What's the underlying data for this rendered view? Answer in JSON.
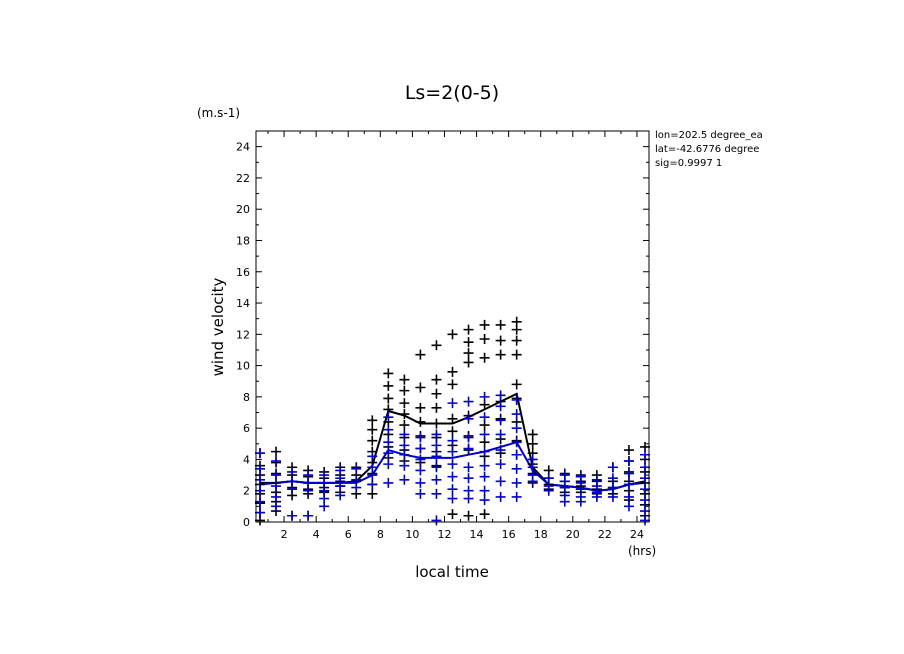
{
  "chart_data": {
    "type": "scatter",
    "title": "Ls=2(0-5)",
    "xlabel": "local time",
    "ylabel": "wind velocity",
    "y_unit": "(m.s-1)",
    "x_unit": "(hrs)",
    "xlim": [
      0.25,
      24.75
    ],
    "ylim": [
      0,
      25
    ],
    "x_ticks": [
      2,
      4,
      6,
      8,
      10,
      12,
      14,
      16,
      18,
      20,
      22,
      24
    ],
    "y_ticks": [
      0,
      2,
      4,
      6,
      8,
      10,
      12,
      14,
      16,
      18,
      20,
      22,
      24
    ],
    "info": [
      "lon=202.5 degree_ea",
      "lat=-42.6776 degree",
      "sig=0.9997 1"
    ],
    "grid": false,
    "lines": [
      {
        "color": "#000000",
        "x": [
          0.5,
          1.5,
          2.5,
          3.5,
          4.5,
          5.5,
          6.5,
          7.5,
          8.5,
          9.5,
          10.5,
          11.5,
          12.5,
          13.5,
          14.5,
          15.5,
          16.5,
          17.5,
          18.5,
          19.5,
          20.5,
          21.5,
          22.5,
          23.5,
          24.5
        ],
        "y": [
          2.5,
          2.5,
          2.6,
          2.5,
          2.5,
          2.5,
          2.6,
          3.6,
          7.1,
          6.8,
          6.3,
          6.3,
          6.3,
          6.7,
          7.2,
          7.7,
          8.2,
          3.5,
          2.4,
          2.3,
          2.2,
          2.0,
          2.1,
          2.4,
          2.6
        ]
      },
      {
        "color": "#0000cc",
        "x": [
          0.5,
          1.5,
          2.5,
          3.5,
          4.5,
          5.5,
          6.5,
          7.5,
          8.5,
          9.5,
          10.5,
          11.5,
          12.5,
          13.5,
          14.5,
          15.5,
          16.5,
          17.5,
          18.5,
          19.5,
          20.5,
          21.5,
          22.5,
          23.5,
          24.5
        ],
        "y": [
          2.4,
          2.5,
          2.6,
          2.5,
          2.5,
          2.5,
          2.5,
          3.0,
          4.6,
          4.3,
          4.1,
          4.1,
          4.1,
          4.3,
          4.5,
          4.8,
          5.1,
          3.3,
          2.4,
          2.3,
          2.2,
          2.0,
          2.1,
          2.4,
          2.5
        ]
      }
    ],
    "series": [
      {
        "color": "#000000",
        "points": [
          [
            0.5,
            4.4
          ],
          [
            0.5,
            3.6
          ],
          [
            0.5,
            3.0
          ],
          [
            0.5,
            2.4
          ],
          [
            0.5,
            1.8
          ],
          [
            0.5,
            1.2
          ],
          [
            0.5,
            0.6
          ],
          [
            0.5,
            0.1
          ],
          [
            1.5,
            4.5
          ],
          [
            1.5,
            3.8
          ],
          [
            1.5,
            3.1
          ],
          [
            1.5,
            2.5
          ],
          [
            1.5,
            1.9
          ],
          [
            1.5,
            1.3
          ],
          [
            1.5,
            0.7
          ],
          [
            2.5,
            3.5
          ],
          [
            2.5,
            3.0
          ],
          [
            2.5,
            2.6
          ],
          [
            2.5,
            2.2
          ],
          [
            2.5,
            1.7
          ],
          [
            2.5,
            0.4
          ],
          [
            3.5,
            3.3
          ],
          [
            3.5,
            2.9
          ],
          [
            3.5,
            2.5
          ],
          [
            3.5,
            2.1
          ],
          [
            3.5,
            1.8
          ],
          [
            3.5,
            0.4
          ],
          [
            4.5,
            3.2
          ],
          [
            4.5,
            2.8
          ],
          [
            4.5,
            2.5
          ],
          [
            4.5,
            2.2
          ],
          [
            4.5,
            1.9
          ],
          [
            5.5,
            3.5
          ],
          [
            5.5,
            3.0
          ],
          [
            5.5,
            2.6
          ],
          [
            5.5,
            2.3
          ],
          [
            5.5,
            1.9
          ],
          [
            6.5,
            3.5
          ],
          [
            6.5,
            3.0
          ],
          [
            6.5,
            2.6
          ],
          [
            6.5,
            1.8
          ],
          [
            7.5,
            6.5
          ],
          [
            7.5,
            5.9
          ],
          [
            7.5,
            5.2
          ],
          [
            7.5,
            4.5
          ],
          [
            7.5,
            3.8
          ],
          [
            7.5,
            3.1
          ],
          [
            7.5,
            2.4
          ],
          [
            7.5,
            1.8
          ],
          [
            8.5,
            9.5
          ],
          [
            8.5,
            8.7
          ],
          [
            8.5,
            7.9
          ],
          [
            8.5,
            7.2
          ],
          [
            8.5,
            6.4
          ],
          [
            8.5,
            5.6
          ],
          [
            8.5,
            4.8
          ],
          [
            8.5,
            4.1
          ],
          [
            9.5,
            9.1
          ],
          [
            9.5,
            8.4
          ],
          [
            9.5,
            7.6
          ],
          [
            9.5,
            6.9
          ],
          [
            9.5,
            6.2
          ],
          [
            9.5,
            5.4
          ],
          [
            9.5,
            4.6
          ],
          [
            9.5,
            3.9
          ],
          [
            10.5,
            10.7
          ],
          [
            10.5,
            8.6
          ],
          [
            10.5,
            7.3
          ],
          [
            10.5,
            6.4
          ],
          [
            10.5,
            5.5
          ],
          [
            10.5,
            4.7
          ],
          [
            10.5,
            3.8
          ],
          [
            11.5,
            11.3
          ],
          [
            11.5,
            9.1
          ],
          [
            11.5,
            8.2
          ],
          [
            11.5,
            7.3
          ],
          [
            11.5,
            6.3
          ],
          [
            11.5,
            5.4
          ],
          [
            11.5,
            4.5
          ],
          [
            11.5,
            3.6
          ],
          [
            12.5,
            12.0
          ],
          [
            12.5,
            9.6
          ],
          [
            12.5,
            8.8
          ],
          [
            12.5,
            6.6
          ],
          [
            12.5,
            5.8
          ],
          [
            12.5,
            4.9
          ],
          [
            12.5,
            0.5
          ],
          [
            13.5,
            12.3
          ],
          [
            13.5,
            11.5
          ],
          [
            13.5,
            10.8
          ],
          [
            13.5,
            10.2
          ],
          [
            13.5,
            6.8
          ],
          [
            13.5,
            5.5
          ],
          [
            13.5,
            4.6
          ],
          [
            13.5,
            0.4
          ],
          [
            14.5,
            12.6
          ],
          [
            14.5,
            11.7
          ],
          [
            14.5,
            10.5
          ],
          [
            14.5,
            7.5
          ],
          [
            14.5,
            6.2
          ],
          [
            14.5,
            5.1
          ],
          [
            14.5,
            4.2
          ],
          [
            14.5,
            0.5
          ],
          [
            15.5,
            12.6
          ],
          [
            15.5,
            11.6
          ],
          [
            15.5,
            10.7
          ],
          [
            15.5,
            7.7
          ],
          [
            15.5,
            6.6
          ],
          [
            15.5,
            5.3
          ],
          [
            15.5,
            4.4
          ],
          [
            16.5,
            12.8
          ],
          [
            16.5,
            12.3
          ],
          [
            16.5,
            11.6
          ],
          [
            16.5,
            10.7
          ],
          [
            16.5,
            8.8
          ],
          [
            16.5,
            7.9
          ],
          [
            16.5,
            6.4
          ],
          [
            16.5,
            5.2
          ],
          [
            16.5,
            4.3
          ],
          [
            17.5,
            5.6
          ],
          [
            17.5,
            5.0
          ],
          [
            17.5,
            4.4
          ],
          [
            17.5,
            3.7
          ],
          [
            17.5,
            3.1
          ],
          [
            17.5,
            2.5
          ],
          [
            18.5,
            3.3
          ],
          [
            18.5,
            2.8
          ],
          [
            18.5,
            2.4
          ],
          [
            18.5,
            2.1
          ],
          [
            19.5,
            3.1
          ],
          [
            19.5,
            2.6
          ],
          [
            19.5,
            2.2
          ],
          [
            19.5,
            1.9
          ],
          [
            20.5,
            3.0
          ],
          [
            20.5,
            2.6
          ],
          [
            20.5,
            2.3
          ],
          [
            20.5,
            1.9
          ],
          [
            21.5,
            3.0
          ],
          [
            21.5,
            2.6
          ],
          [
            21.5,
            2.1
          ],
          [
            21.5,
            1.8
          ],
          [
            22.5,
            3.5
          ],
          [
            22.5,
            2.6
          ],
          [
            22.5,
            2.2
          ],
          [
            22.5,
            1.8
          ],
          [
            23.5,
            4.6
          ],
          [
            23.5,
            3.9
          ],
          [
            23.5,
            3.2
          ],
          [
            23.5,
            2.6
          ],
          [
            23.5,
            2.0
          ],
          [
            23.5,
            1.4
          ],
          [
            24.5,
            4.8
          ],
          [
            24.5,
            4.0
          ],
          [
            24.5,
            3.2
          ],
          [
            24.5,
            2.5
          ],
          [
            24.5,
            1.8
          ],
          [
            24.5,
            1.1
          ],
          [
            24.5,
            0.4
          ]
        ]
      },
      {
        "color": "#0000cc",
        "points": [
          [
            0.5,
            4.4
          ],
          [
            0.5,
            3.4
          ],
          [
            0.5,
            2.7
          ],
          [
            0.5,
            2.0
          ],
          [
            0.5,
            1.3
          ],
          [
            0.5,
            0.6
          ],
          [
            1.5,
            3.9
          ],
          [
            1.5,
            3.0
          ],
          [
            1.5,
            2.3
          ],
          [
            1.5,
            1.6
          ],
          [
            1.5,
            1.0
          ],
          [
            2.5,
            3.2
          ],
          [
            2.5,
            2.6
          ],
          [
            2.5,
            2.1
          ],
          [
            2.5,
            0.4
          ],
          [
            3.5,
            3.0
          ],
          [
            3.5,
            2.5
          ],
          [
            3.5,
            2.0
          ],
          [
            3.5,
            0.4
          ],
          [
            4.5,
            3.0
          ],
          [
            4.5,
            2.5
          ],
          [
            4.5,
            2.0
          ],
          [
            4.5,
            1.5
          ],
          [
            4.5,
            1.0
          ],
          [
            5.5,
            3.3
          ],
          [
            5.5,
            2.8
          ],
          [
            5.5,
            2.3
          ],
          [
            5.5,
            1.7
          ],
          [
            6.5,
            3.4
          ],
          [
            6.5,
            2.7
          ],
          [
            6.5,
            2.2
          ],
          [
            7.5,
            4.2
          ],
          [
            7.5,
            3.5
          ],
          [
            7.5,
            3.0
          ],
          [
            7.5,
            2.4
          ],
          [
            8.5,
            6.7
          ],
          [
            8.5,
            5.9
          ],
          [
            8.5,
            5.1
          ],
          [
            8.5,
            4.4
          ],
          [
            8.5,
            3.7
          ],
          [
            8.5,
            2.5
          ],
          [
            9.5,
            5.6
          ],
          [
            9.5,
            4.9
          ],
          [
            9.5,
            4.3
          ],
          [
            9.5,
            3.6
          ],
          [
            9.5,
            2.7
          ],
          [
            10.5,
            5.4
          ],
          [
            10.5,
            4.7
          ],
          [
            10.5,
            4.0
          ],
          [
            10.5,
            3.3
          ],
          [
            10.5,
            2.5
          ],
          [
            10.5,
            1.8
          ],
          [
            11.5,
            5.6
          ],
          [
            11.5,
            4.9
          ],
          [
            11.5,
            4.2
          ],
          [
            11.5,
            3.5
          ],
          [
            11.5,
            2.7
          ],
          [
            11.5,
            1.8
          ],
          [
            11.5,
            0.1
          ],
          [
            12.5,
            7.6
          ],
          [
            12.5,
            5.2
          ],
          [
            12.5,
            4.5
          ],
          [
            12.5,
            3.7
          ],
          [
            12.5,
            2.9
          ],
          [
            12.5,
            2.1
          ],
          [
            12.5,
            1.5
          ],
          [
            13.5,
            7.7
          ],
          [
            13.5,
            6.6
          ],
          [
            13.5,
            5.4
          ],
          [
            13.5,
            4.7
          ],
          [
            13.5,
            3.5
          ],
          [
            13.5,
            2.8
          ],
          [
            13.5,
            2.0
          ],
          [
            13.5,
            1.5
          ],
          [
            14.5,
            8.0
          ],
          [
            14.5,
            6.7
          ],
          [
            14.5,
            5.6
          ],
          [
            14.5,
            4.5
          ],
          [
            14.5,
            3.6
          ],
          [
            14.5,
            2.9
          ],
          [
            14.5,
            2.0
          ],
          [
            14.5,
            1.4
          ],
          [
            15.5,
            8.1
          ],
          [
            15.5,
            7.4
          ],
          [
            15.5,
            6.5
          ],
          [
            15.5,
            5.6
          ],
          [
            15.5,
            4.6
          ],
          [
            15.5,
            3.7
          ],
          [
            15.5,
            2.6
          ],
          [
            15.5,
            1.6
          ],
          [
            16.5,
            7.8
          ],
          [
            16.5,
            6.9
          ],
          [
            16.5,
            6.0
          ],
          [
            16.5,
            5.1
          ],
          [
            16.5,
            4.3
          ],
          [
            16.5,
            3.4
          ],
          [
            16.5,
            2.5
          ],
          [
            16.5,
            1.6
          ],
          [
            17.5,
            4.0
          ],
          [
            17.5,
            3.5
          ],
          [
            17.5,
            3.0
          ],
          [
            17.5,
            2.6
          ],
          [
            18.5,
            2.8
          ],
          [
            18.5,
            2.3
          ],
          [
            18.5,
            2.0
          ],
          [
            19.5,
            3.0
          ],
          [
            19.5,
            2.6
          ],
          [
            19.5,
            2.2
          ],
          [
            19.5,
            1.7
          ],
          [
            19.5,
            1.3
          ],
          [
            20.5,
            2.9
          ],
          [
            20.5,
            2.5
          ],
          [
            20.5,
            2.1
          ],
          [
            20.5,
            1.6
          ],
          [
            20.5,
            1.3
          ],
          [
            21.5,
            2.7
          ],
          [
            21.5,
            2.3
          ],
          [
            21.5,
            1.9
          ],
          [
            21.5,
            1.6
          ],
          [
            22.5,
            3.5
          ],
          [
            22.5,
            2.8
          ],
          [
            22.5,
            2.2
          ],
          [
            22.5,
            1.6
          ],
          [
            23.5,
            3.9
          ],
          [
            23.5,
            3.1
          ],
          [
            23.5,
            2.4
          ],
          [
            23.5,
            1.6
          ],
          [
            23.5,
            1.0
          ],
          [
            24.5,
            4.3
          ],
          [
            24.5,
            3.5
          ],
          [
            24.5,
            2.8
          ],
          [
            24.5,
            2.1
          ],
          [
            24.5,
            1.4
          ],
          [
            24.5,
            0.7
          ],
          [
            24.5,
            0.1
          ]
        ]
      }
    ]
  }
}
